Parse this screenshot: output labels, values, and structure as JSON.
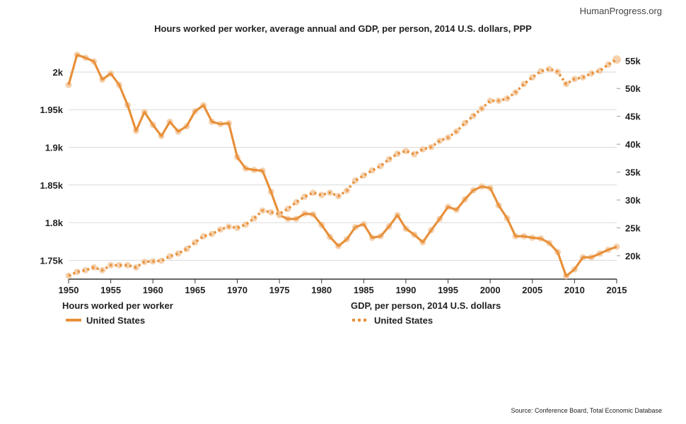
{
  "brand": "HumanProgress.org",
  "source": "Source: Conference Board, Total Economic Database",
  "chart_data": {
    "type": "line",
    "title": "Hours worked per worker, average annual and GDP, per person, 2014 U.S. dollars, PPP",
    "x": [
      1950,
      1951,
      1952,
      1953,
      1954,
      1955,
      1956,
      1957,
      1958,
      1959,
      1960,
      1961,
      1962,
      1963,
      1964,
      1965,
      1966,
      1967,
      1968,
      1969,
      1970,
      1971,
      1972,
      1973,
      1974,
      1975,
      1976,
      1977,
      1978,
      1979,
      1980,
      1981,
      1982,
      1983,
      1984,
      1985,
      1986,
      1987,
      1988,
      1989,
      1990,
      1991,
      1992,
      1993,
      1994,
      1995,
      1996,
      1997,
      1998,
      1999,
      2000,
      2001,
      2002,
      2003,
      2004,
      2005,
      2006,
      2007,
      2008,
      2009,
      2010,
      2011,
      2012,
      2013,
      2014,
      2015
    ],
    "xlim": [
      1950,
      2015
    ],
    "x_ticks": [
      "1950",
      "1955",
      "1960",
      "1965",
      "1970",
      "1975",
      "1980",
      "1985",
      "1990",
      "1995",
      "2000",
      "2005",
      "2010",
      "2015"
    ],
    "series": [
      {
        "name": "United States",
        "axis_title": "Hours worked per worker",
        "axis": "left",
        "style": "solid",
        "values": [
          1983,
          2023,
          2019,
          2014,
          1990,
          1998,
          1983,
          1956,
          1922,
          1947,
          1930,
          1915,
          1934,
          1921,
          1928,
          1948,
          1956,
          1934,
          1931,
          1932,
          1887,
          1872,
          1870,
          1869,
          1841,
          1810,
          1805,
          1805,
          1812,
          1811,
          1797,
          1781,
          1769,
          1778,
          1794,
          1798,
          1780,
          1782,
          1795,
          1810,
          1792,
          1784,
          1774,
          1790,
          1805,
          1821,
          1817,
          1831,
          1843,
          1848,
          1846,
          1823,
          1806,
          1782,
          1782,
          1780,
          1779,
          1773,
          1761,
          1729,
          1738,
          1754,
          1754,
          1759,
          1764,
          1768
        ],
        "ylim": [
          1725,
          2030
        ],
        "y_ticks": [
          "1.75k",
          "1.8k",
          "1.85k",
          "1.9k",
          "1.95k",
          "2k"
        ],
        "y_tick_values": [
          1750,
          1800,
          1850,
          1900,
          1950,
          2000
        ]
      },
      {
        "name": "United States",
        "axis_title": "GDP, per person, 2014 U.S. dollars",
        "axis": "right",
        "style": "dotted",
        "values": [
          16400,
          17100,
          17400,
          17900,
          17400,
          18300,
          18300,
          18300,
          17900,
          18900,
          19000,
          19100,
          19900,
          20400,
          21200,
          22400,
          23500,
          23900,
          24700,
          25200,
          25000,
          25600,
          26700,
          28100,
          27800,
          27500,
          28400,
          29600,
          30600,
          31300,
          30900,
          31300,
          30700,
          31700,
          33500,
          34400,
          35300,
          36100,
          37300,
          38300,
          38800,
          38200,
          39100,
          39500,
          40600,
          41200,
          42300,
          43800,
          45100,
          46400,
          47800,
          47800,
          48200,
          49300,
          50800,
          52000,
          53100,
          53500,
          53000,
          50800,
          51700,
          52000,
          52700,
          53200,
          54300,
          55200
        ],
        "ylim": [
          15800,
          57000
        ],
        "y_ticks": [
          "20k",
          "25k",
          "30k",
          "35k",
          "40k",
          "45k",
          "50k",
          "55k"
        ],
        "y_tick_values": [
          20000,
          25000,
          30000,
          35000,
          40000,
          45000,
          50000,
          55000
        ]
      }
    ],
    "legend": {
      "placement": "bottom-left",
      "left_title": "Hours worked per worker",
      "left_label": "United States",
      "right_title": "GDP, per person, 2014 U.S. dollars",
      "right_label": "United States"
    },
    "grid": true,
    "colors": {
      "line": "#e8903a",
      "marker": "#f3c9a0",
      "grid": "#d9d9d9",
      "axis": "#333333"
    }
  }
}
